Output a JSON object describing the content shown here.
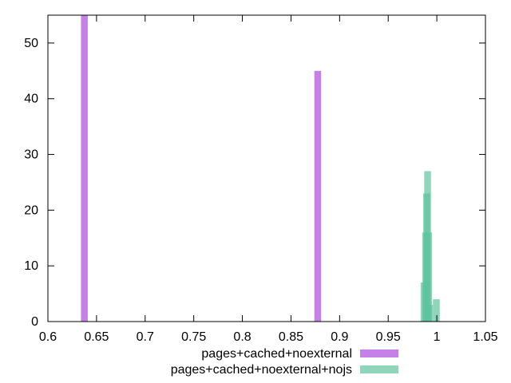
{
  "chart_data": {
    "type": "bar",
    "title": "",
    "xlabel": "",
    "ylabel": "",
    "xlim": [
      0.6,
      1.05
    ],
    "ylim": [
      0,
      55
    ],
    "xticks": [
      {
        "value": 0.6,
        "label": "0.6"
      },
      {
        "value": 0.65,
        "label": "0.65"
      },
      {
        "value": 0.7,
        "label": "0.7"
      },
      {
        "value": 0.75,
        "label": "0.75"
      },
      {
        "value": 0.8,
        "label": "0.8"
      },
      {
        "value": 0.85,
        "label": "0.85"
      },
      {
        "value": 0.9,
        "label": "0.9"
      },
      {
        "value": 0.95,
        "label": "0.95"
      },
      {
        "value": 1.0,
        "label": "1"
      },
      {
        "value": 1.05,
        "label": "1.05"
      }
    ],
    "yticks": [
      {
        "value": 0,
        "label": "0"
      },
      {
        "value": 10,
        "label": "10"
      },
      {
        "value": 20,
        "label": "20"
      },
      {
        "value": 30,
        "label": "30"
      },
      {
        "value": 40,
        "label": "40"
      },
      {
        "value": 50,
        "label": "50"
      }
    ],
    "grid": false,
    "legend_position": "bottom-center",
    "series": [
      {
        "name": "pages+cached+noexternal",
        "color": "#c27ae6",
        "opacity": 0.95,
        "bin_width": 0.007,
        "points": [
          {
            "x": 0.6375,
            "y": 60
          },
          {
            "x": 0.8775,
            "y": 45
          }
        ]
      },
      {
        "name": "pages+cached+noexternal+nojs",
        "color": "#5ec3a0",
        "opacity": 0.7,
        "bin_width": 0.007,
        "points": [
          {
            "x": 0.9868,
            "y": 7
          },
          {
            "x": 0.9885,
            "y": 16
          },
          {
            "x": 0.9895,
            "y": 23
          },
          {
            "x": 0.9905,
            "y": 27
          },
          {
            "x": 0.9915,
            "y": 16
          },
          {
            "x": 0.9925,
            "y": 3
          },
          {
            "x": 0.9995,
            "y": 4
          }
        ]
      }
    ]
  }
}
